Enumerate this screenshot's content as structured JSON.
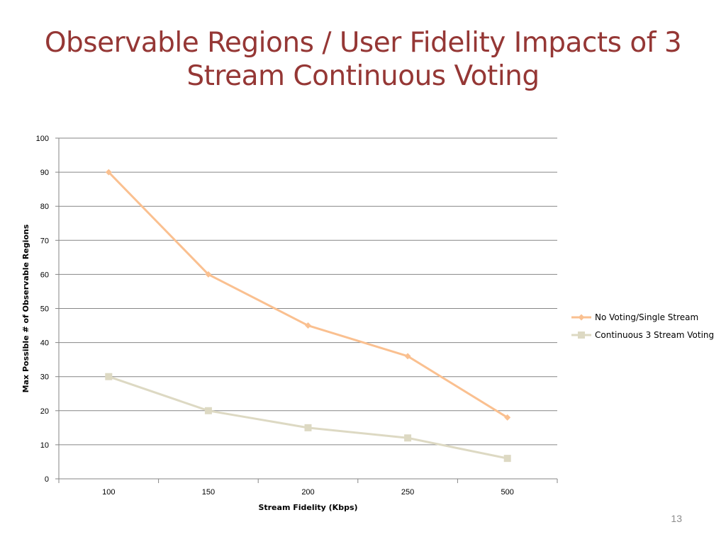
{
  "slide": {
    "title_line1": "Observable Regions / User Fidelity Impacts of 3",
    "title_line2": "Stream Continuous Voting",
    "slide_number": "13"
  },
  "chart_data": {
    "type": "line",
    "categories": [
      "100",
      "150",
      "200",
      "250",
      "500"
    ],
    "series": [
      {
        "name": "No Voting/Single Stream",
        "values": [
          90,
          60,
          45,
          36,
          18
        ],
        "color": "#fac090",
        "marker": "diamond"
      },
      {
        "name": "Continuous 3 Stream Voting",
        "values": [
          30,
          20,
          15,
          12,
          6
        ],
        "color": "#ddd9c3",
        "marker": "square"
      }
    ],
    "title": "",
    "xlabel": "Stream Fidelity (Kbps)",
    "ylabel": "Max Possible # of Observable Regions",
    "ylim": [
      0,
      100
    ],
    "yticks": [
      "0",
      "10",
      "20",
      "30",
      "40",
      "50",
      "60",
      "70",
      "80",
      "90",
      "100"
    ],
    "grid": true,
    "legend": "right"
  }
}
